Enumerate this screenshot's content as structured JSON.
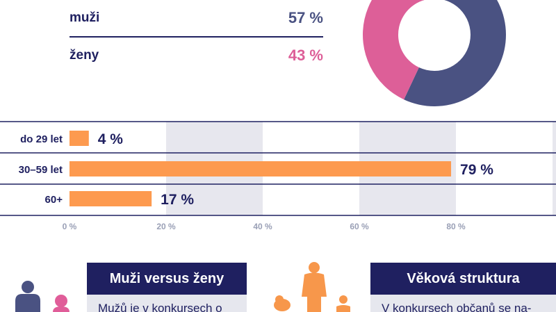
{
  "gender": {
    "men": {
      "label": "muži",
      "value": "57 %"
    },
    "women": {
      "label": "ženy",
      "value": "43 %"
    }
  },
  "colors": {
    "navy": "#1f2060",
    "men": "#4a5282",
    "women": "#dd5f98",
    "bar": "#fd9a4f",
    "band": "#e7e7ee",
    "tick": "#9aa0b6",
    "silhouette_navy": "#4a5282",
    "silhouette_pink": "#e05d99",
    "silhouette_orange": "#f7974b"
  },
  "chart_data": [
    {
      "type": "pie",
      "title": "",
      "labels": [
        "muži",
        "ženy"
      ],
      "values": [
        57,
        43
      ],
      "donut": true
    },
    {
      "type": "bar",
      "orientation": "horizontal",
      "categories": [
        "do 29 let",
        "30–59 let",
        "60+"
      ],
      "values": [
        4,
        79,
        17
      ],
      "value_labels": [
        "4 %",
        "79 %",
        "17 %"
      ],
      "xlim": [
        0,
        100
      ],
      "xticks": [
        0,
        20,
        40,
        60,
        80
      ],
      "xtick_labels": [
        "0 %",
        "20 %",
        "40 %",
        "60 %",
        "80 %"
      ],
      "xlabel": "",
      "ylabel": ""
    }
  ],
  "cards": [
    {
      "title": "Muži versus ženy",
      "text": "Mužů je v konkursech o"
    },
    {
      "title": "Věková struktura",
      "text": "V konkursech občanů se na-"
    }
  ]
}
